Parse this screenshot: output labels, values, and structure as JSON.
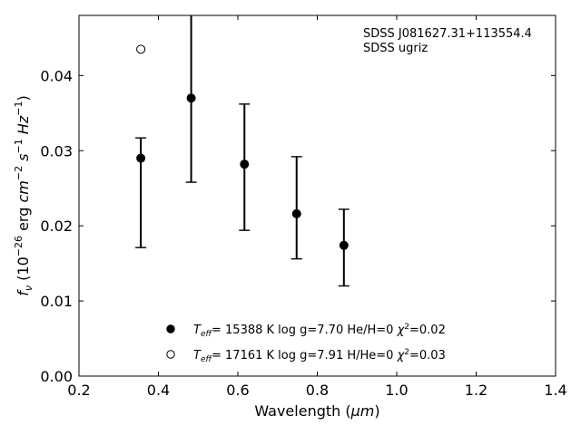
{
  "chart_data": {
    "type": "scatter",
    "xlabel_main": "Wavelength (",
    "xlabel_unit": "μm",
    "xlabel_close": ")",
    "ylabel_parts": {
      "f": "f",
      "nu": "ν",
      "open": " (10",
      "exp1": "−26",
      "erg": " erg ",
      "cm": "cm",
      "exp2": "−2",
      "s": " s",
      "exp3": "−1",
      "hz": " Hz",
      "exp4": "−1",
      "close": ")"
    },
    "xlim": [
      0.2,
      1.4
    ],
    "ylim": [
      0.0,
      0.048
    ],
    "xticks": [
      0.2,
      0.4,
      0.6,
      0.8,
      1.0,
      1.2,
      1.4
    ],
    "xtick_labels": [
      "0.2",
      "0.4",
      "0.6",
      "0.8",
      "1.0",
      "1.2",
      "1.4"
    ],
    "yticks": [
      0.0,
      0.01,
      0.02,
      0.03,
      0.04
    ],
    "ytick_labels": [
      "0.00",
      "0.01",
      "0.02",
      "0.03",
      "0.04"
    ],
    "annotation_lines": [
      "SDSS J081627.31+113554.4",
      "SDSS ugriz"
    ],
    "observed": [
      {
        "x": 0.3557,
        "y": 0.0244,
        "yerr": 0.0073
      },
      {
        "x": 0.4825,
        "y": 0.037,
        "yerr": 0.0112
      },
      {
        "x": 0.6166,
        "y": 0.0278,
        "yerr": 0.0084
      },
      {
        "x": 0.748,
        "y": 0.0224,
        "yerr": 0.0068
      },
      {
        "x": 0.867,
        "y": 0.0171,
        "yerr": 0.0051
      }
    ],
    "series": [
      {
        "marker": "filled",
        "points": [
          {
            "x": 0.3557,
            "y": 0.029
          },
          {
            "x": 0.4825,
            "y": 0.037
          },
          {
            "x": 0.6166,
            "y": 0.0282
          },
          {
            "x": 0.748,
            "y": 0.0216
          },
          {
            "x": 0.867,
            "y": 0.0174
          }
        ],
        "legend": {
          "teff_sym": "T",
          "teff_sub": "eff",
          "text1": "= 15388 K  log g=7.70  He/H=0  ",
          "chi": "χ",
          "chi_exp": "2",
          "text2": "=0.02"
        }
      },
      {
        "marker": "open",
        "points": [
          {
            "x": 0.3557,
            "y": 0.0435
          }
        ],
        "legend": {
          "teff_sym": "T",
          "teff_sub": "eff",
          "text1": "= 17161 K  log g=7.91  H/He=0  ",
          "chi": "χ",
          "chi_exp": "2",
          "text2": "=0.03"
        }
      }
    ]
  }
}
